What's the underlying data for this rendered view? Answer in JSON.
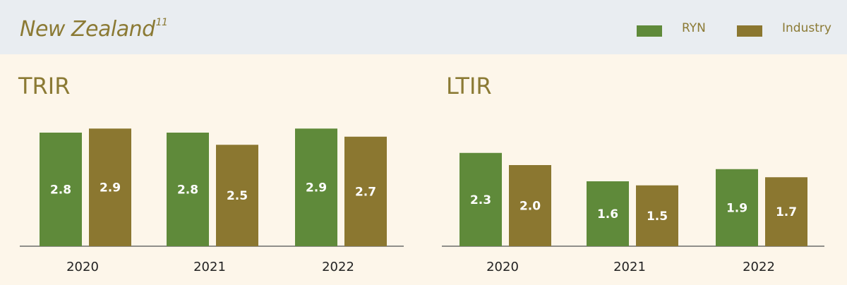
{
  "header": {
    "title": "New Zealand",
    "footnote": "11",
    "legend": [
      {
        "label": "RYN",
        "color": "#5f8a3a"
      },
      {
        "label": "Industry",
        "color": "#8b7730"
      }
    ]
  },
  "chart_data": [
    {
      "type": "bar",
      "title": "TRIR",
      "categories": [
        "2020",
        "2021",
        "2022"
      ],
      "series": [
        {
          "name": "RYN",
          "values": [
            2.8,
            2.8,
            2.9
          ],
          "labels": [
            "2.8",
            "2.8",
            "2.9"
          ],
          "color": "#5f8a3a"
        },
        {
          "name": "Industry",
          "values": [
            2.9,
            2.5,
            2.7
          ],
          "labels": [
            "2.9",
            "2.5",
            "2.7"
          ],
          "color": "#8b7730"
        }
      ],
      "legend_position": "top-right",
      "grid": false
    },
    {
      "type": "bar",
      "title": "LTIR",
      "categories": [
        "2020",
        "2021",
        "2022"
      ],
      "series": [
        {
          "name": "RYN",
          "values": [
            2.3,
            1.6,
            1.9
          ],
          "labels": [
            "2.3",
            "1.6",
            "1.9"
          ],
          "color": "#5f8a3a"
        },
        {
          "name": "Industry",
          "values": [
            2.0,
            1.5,
            1.7
          ],
          "labels": [
            "2.0",
            "1.5",
            "1.7"
          ],
          "color": "#8b7730"
        }
      ],
      "legend_position": "top-right",
      "grid": false
    }
  ]
}
